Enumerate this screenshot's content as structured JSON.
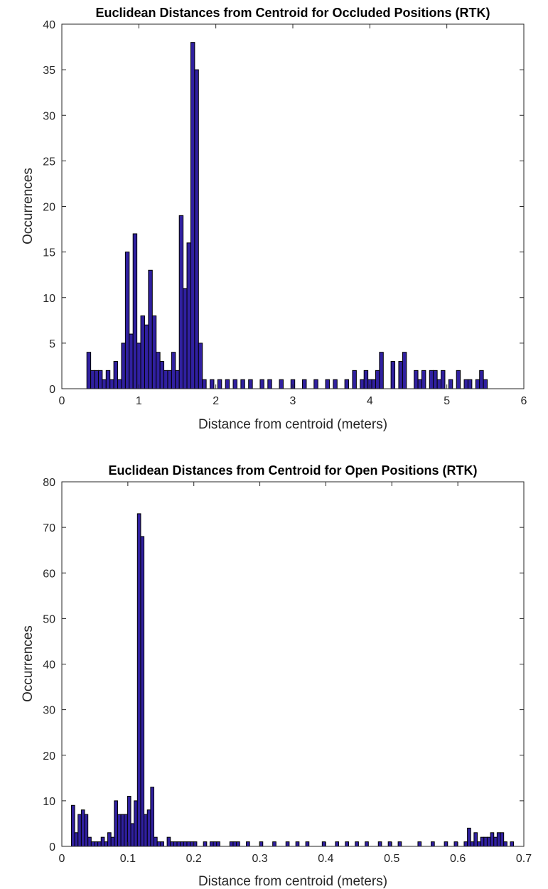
{
  "colors": {
    "bar_fill": "#3020a0",
    "bar_edge": "#000000",
    "axis": "#262626"
  },
  "chart_data": [
    {
      "type": "bar",
      "title": "Euclidean Distances from Centroid for Occluded Positions (RTK)",
      "xlabel": "Distance from centroid (meters)",
      "ylabel": "Occurrences",
      "xlim": [
        0,
        6
      ],
      "ylim": [
        0,
        40
      ],
      "xticks": [
        0,
        1,
        2,
        3,
        4,
        5,
        6
      ],
      "yticks": [
        0,
        5,
        10,
        15,
        20,
        25,
        30,
        35,
        40
      ],
      "bin_width": 0.05,
      "grid": false,
      "bins": [
        [
          0.35,
          4
        ],
        [
          0.4,
          2
        ],
        [
          0.45,
          2
        ],
        [
          0.5,
          2
        ],
        [
          0.55,
          1
        ],
        [
          0.6,
          2
        ],
        [
          0.65,
          1
        ],
        [
          0.7,
          3
        ],
        [
          0.75,
          1
        ],
        [
          0.8,
          5
        ],
        [
          0.85,
          15
        ],
        [
          0.9,
          6
        ],
        [
          0.95,
          17
        ],
        [
          1.0,
          5
        ],
        [
          1.05,
          8
        ],
        [
          1.1,
          7
        ],
        [
          1.15,
          13
        ],
        [
          1.2,
          8
        ],
        [
          1.25,
          4
        ],
        [
          1.3,
          3
        ],
        [
          1.35,
          2
        ],
        [
          1.4,
          2
        ],
        [
          1.45,
          4
        ],
        [
          1.5,
          2
        ],
        [
          1.55,
          19
        ],
        [
          1.6,
          11
        ],
        [
          1.65,
          16
        ],
        [
          1.7,
          38
        ],
        [
          1.75,
          35
        ],
        [
          1.8,
          5
        ],
        [
          1.85,
          1
        ],
        [
          1.95,
          1
        ],
        [
          2.05,
          1
        ],
        [
          2.15,
          1
        ],
        [
          2.25,
          1
        ],
        [
          2.35,
          1
        ],
        [
          2.45,
          1
        ],
        [
          2.6,
          1
        ],
        [
          2.7,
          1
        ],
        [
          2.85,
          1
        ],
        [
          3.0,
          1
        ],
        [
          3.15,
          1
        ],
        [
          3.3,
          1
        ],
        [
          3.45,
          1
        ],
        [
          3.55,
          1
        ],
        [
          3.7,
          1
        ],
        [
          3.8,
          2
        ],
        [
          3.9,
          1
        ],
        [
          3.95,
          2
        ],
        [
          4.0,
          1
        ],
        [
          4.05,
          1
        ],
        [
          4.1,
          2
        ],
        [
          4.15,
          4
        ],
        [
          4.3,
          3
        ],
        [
          4.4,
          3
        ],
        [
          4.45,
          4
        ],
        [
          4.6,
          2
        ],
        [
          4.65,
          1
        ],
        [
          4.7,
          2
        ],
        [
          4.8,
          2
        ],
        [
          4.85,
          2
        ],
        [
          4.9,
          1
        ],
        [
          4.95,
          2
        ],
        [
          5.05,
          1
        ],
        [
          5.15,
          2
        ],
        [
          5.25,
          1
        ],
        [
          5.3,
          1
        ],
        [
          5.4,
          1
        ],
        [
          5.45,
          2
        ],
        [
          5.5,
          1
        ]
      ]
    },
    {
      "type": "bar",
      "title": "Euclidean Distances from Centroid for Open Positions (RTK)",
      "xlabel": "Distance from centroid (meters)",
      "ylabel": "Occurrences",
      "xlim": [
        0,
        0.7
      ],
      "ylim": [
        0,
        80
      ],
      "xticks": [
        0,
        0.1,
        0.2,
        0.3,
        0.4,
        0.5,
        0.6,
        0.7
      ],
      "xtick_labels": [
        "0",
        "0.1",
        "0.2",
        "0.3",
        "0.4",
        "0.5",
        "0.6",
        "0.7"
      ],
      "yticks": [
        0,
        10,
        20,
        30,
        40,
        50,
        60,
        70,
        80
      ],
      "bin_width": 0.005,
      "grid": false,
      "bins": [
        [
          0.017,
          9
        ],
        [
          0.022,
          3
        ],
        [
          0.027,
          7
        ],
        [
          0.032,
          8
        ],
        [
          0.037,
          7
        ],
        [
          0.042,
          2
        ],
        [
          0.047,
          1
        ],
        [
          0.052,
          1
        ],
        [
          0.057,
          1
        ],
        [
          0.062,
          2
        ],
        [
          0.067,
          1
        ],
        [
          0.072,
          3
        ],
        [
          0.077,
          2
        ],
        [
          0.082,
          10
        ],
        [
          0.087,
          7
        ],
        [
          0.092,
          7
        ],
        [
          0.097,
          7
        ],
        [
          0.102,
          11
        ],
        [
          0.107,
          5
        ],
        [
          0.112,
          10
        ],
        [
          0.117,
          73
        ],
        [
          0.122,
          68
        ],
        [
          0.127,
          7
        ],
        [
          0.132,
          8
        ],
        [
          0.137,
          13
        ],
        [
          0.142,
          2
        ],
        [
          0.147,
          1
        ],
        [
          0.152,
          1
        ],
        [
          0.162,
          2
        ],
        [
          0.167,
          1
        ],
        [
          0.172,
          1
        ],
        [
          0.177,
          1
        ],
        [
          0.182,
          1
        ],
        [
          0.187,
          1
        ],
        [
          0.192,
          1
        ],
        [
          0.197,
          1
        ],
        [
          0.202,
          1
        ],
        [
          0.217,
          1
        ],
        [
          0.227,
          1
        ],
        [
          0.232,
          1
        ],
        [
          0.237,
          1
        ],
        [
          0.257,
          1
        ],
        [
          0.262,
          1
        ],
        [
          0.267,
          1
        ],
        [
          0.282,
          1
        ],
        [
          0.302,
          1
        ],
        [
          0.322,
          1
        ],
        [
          0.342,
          1
        ],
        [
          0.357,
          1
        ],
        [
          0.372,
          1
        ],
        [
          0.397,
          1
        ],
        [
          0.417,
          1
        ],
        [
          0.432,
          1
        ],
        [
          0.447,
          1
        ],
        [
          0.462,
          1
        ],
        [
          0.482,
          1
        ],
        [
          0.497,
          1
        ],
        [
          0.512,
          1
        ],
        [
          0.542,
          1
        ],
        [
          0.562,
          1
        ],
        [
          0.582,
          1
        ],
        [
          0.597,
          1
        ],
        [
          0.612,
          1
        ],
        [
          0.617,
          4
        ],
        [
          0.622,
          1
        ],
        [
          0.627,
          3
        ],
        [
          0.632,
          1
        ],
        [
          0.637,
          2
        ],
        [
          0.642,
          2
        ],
        [
          0.647,
          2
        ],
        [
          0.652,
          3
        ],
        [
          0.657,
          2
        ],
        [
          0.662,
          3
        ],
        [
          0.667,
          3
        ],
        [
          0.672,
          1
        ],
        [
          0.682,
          1
        ]
      ]
    }
  ]
}
